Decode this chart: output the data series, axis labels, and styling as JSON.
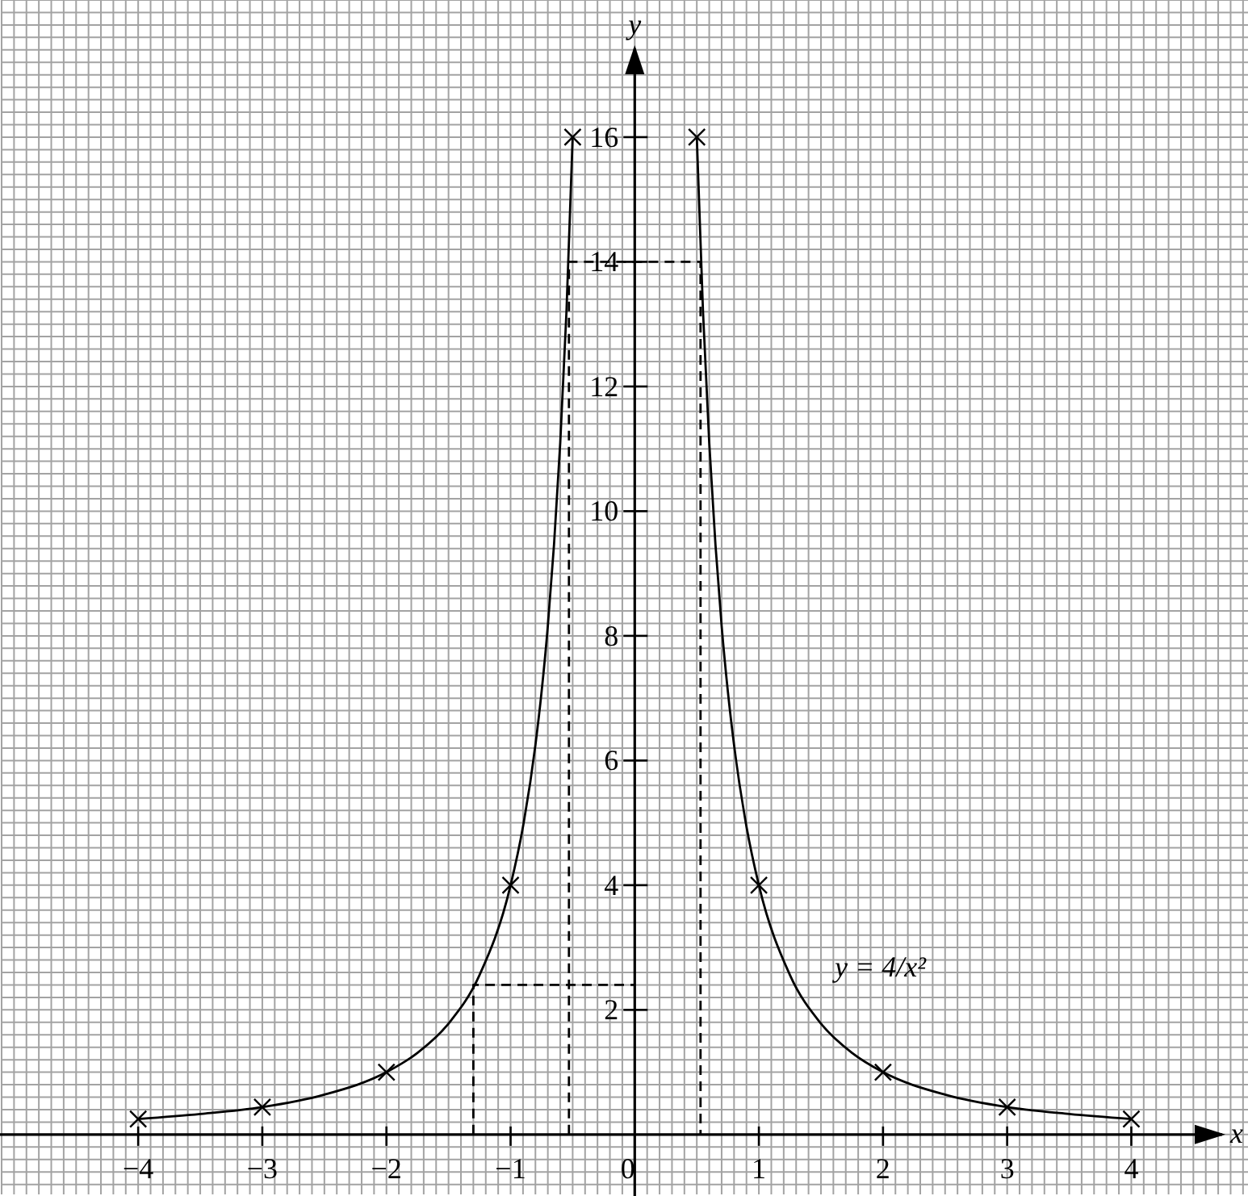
{
  "chart_data": {
    "type": "line",
    "xlabel": "x",
    "ylabel": "y",
    "xlim": [
      -5.1,
      4.94
    ],
    "ylim": [
      -0.96,
      18.2
    ],
    "xticks": [
      {
        "value": -4,
        "label": "−4"
      },
      {
        "value": -3,
        "label": "−3"
      },
      {
        "value": -2,
        "label": "−2"
      },
      {
        "value": -1,
        "label": "−1"
      },
      0,
      1,
      2,
      3,
      4
    ],
    "yticks": [
      2,
      4,
      6,
      8,
      10,
      12,
      14,
      16
    ],
    "grid": true,
    "series": [
      {
        "color": "#000000",
        "marker": "none",
        "line_style": "solid",
        "x": [
          -4,
          -3.5,
          -3,
          -2.5,
          -2,
          -1.75,
          -1.5,
          -1.25,
          -1,
          -0.9,
          -0.8,
          -0.75,
          -0.7,
          -0.65,
          -0.6,
          -0.55,
          -0.5
        ],
        "values": [
          0.25,
          0.33,
          0.44,
          0.64,
          1,
          1.31,
          1.78,
          2.56,
          4,
          4.94,
          6.25,
          7.11,
          8.16,
          9.47,
          11.1,
          13.2,
          16
        ]
      },
      {
        "color": "#000000",
        "marker": "none",
        "line_style": "solid",
        "x": [
          0.5,
          0.55,
          0.6,
          0.65,
          0.7,
          0.75,
          0.8,
          0.9,
          1,
          1.25,
          1.5,
          1.75,
          2,
          2.5,
          3,
          3.5,
          4
        ],
        "values": [
          16,
          13.2,
          11.1,
          9.47,
          8.16,
          7.11,
          6.25,
          4.94,
          4,
          2.56,
          1.78,
          1.31,
          1,
          0.64,
          0.44,
          0.33,
          0.25
        ]
      },
      {
        "type": "scatter",
        "color": "#000000",
        "marker": "cross",
        "x": [
          -4,
          -3,
          -2,
          -1,
          -0.5,
          0.5,
          1,
          2,
          3,
          4
        ],
        "values": [
          0.25,
          0.44,
          1,
          4,
          16,
          16,
          4,
          1,
          0.44,
          0.25
        ]
      },
      {
        "color": "#000000",
        "marker": "none",
        "line_style": "dashed",
        "x": [
          -0.53,
          -0.53,
          0.53,
          0.53
        ],
        "values": [
          0,
          14,
          14,
          0
        ]
      },
      {
        "color": "#000000",
        "marker": "none",
        "line_style": "dashed",
        "x": [
          -1.3,
          -1.3,
          0
        ],
        "values": [
          0,
          2.4,
          2.4
        ]
      }
    ],
    "annotations": [
      "y = 4/x²"
    ]
  }
}
